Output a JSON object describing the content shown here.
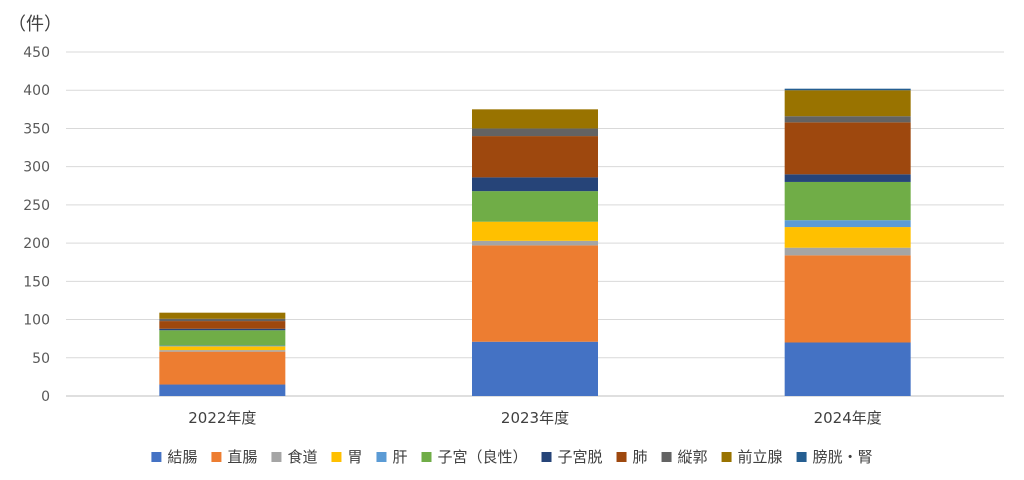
{
  "chart_data": {
    "type": "bar",
    "stacked": true,
    "unit_label": "（件）",
    "categories": [
      "2022年度",
      "2023年度",
      "2024年度"
    ],
    "ylim": [
      0,
      450
    ],
    "yticks": [
      0,
      50,
      100,
      150,
      200,
      250,
      300,
      350,
      400,
      450
    ],
    "grid": true,
    "legend_position": "bottom",
    "series": [
      {
        "name": "結腸",
        "color": "#4472C4",
        "values": [
          15,
          71,
          70
        ]
      },
      {
        "name": "直腸",
        "color": "#ED7D31",
        "values": [
          43,
          126,
          114
        ]
      },
      {
        "name": "食道",
        "color": "#A5A5A5",
        "values": [
          2,
          6,
          10
        ]
      },
      {
        "name": "胃",
        "color": "#FFC000",
        "values": [
          5,
          25,
          27
        ]
      },
      {
        "name": "肝",
        "color": "#5B9BD5",
        "values": [
          1,
          0,
          9
        ]
      },
      {
        "name": "子宮（良性）",
        "color": "#70AD47",
        "values": [
          20,
          40,
          50
        ]
      },
      {
        "name": "子宮脱",
        "color": "#264478",
        "values": [
          2,
          18,
          10
        ]
      },
      {
        "name": "肺",
        "color": "#9E480E",
        "values": [
          10,
          54,
          68
        ]
      },
      {
        "name": "縦郭",
        "color": "#636363",
        "values": [
          3,
          10,
          8
        ]
      },
      {
        "name": "前立腺",
        "color": "#997300",
        "values": [
          8,
          25,
          34
        ]
      },
      {
        "name": "膀胱・腎",
        "color": "#255E91",
        "values": [
          0,
          0,
          2
        ]
      }
    ]
  }
}
